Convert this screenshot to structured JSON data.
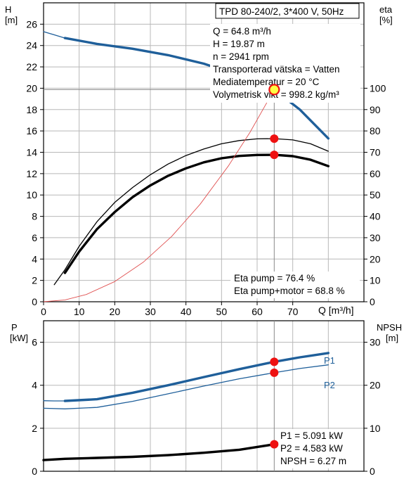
{
  "colors": {
    "blue": "#1f5f9a",
    "red_line": "#e05050",
    "marker": "#ee1111",
    "marker_highlight": "#ffff44",
    "grid": "#b8b8b8",
    "black": "#000000"
  },
  "header": {
    "title": "TPD 80-240/2, 3*400 V, 50Hz",
    "info": [
      "Q = 64.8 m³/h",
      "H = 19.87 m",
      "n = 2941 rpm",
      "Transporterad vätska = Vatten",
      "Mediatemperatur = 20 °C",
      "Volymetrisk vikt = 998.2 kg/m³"
    ]
  },
  "chart_data": [
    {
      "type": "line",
      "panel": "top",
      "left_axis": {
        "label": "H",
        "unit": "[m]",
        "range": [
          0,
          28
        ],
        "ticks": [
          "0",
          "2",
          "4",
          "6",
          "8",
          "10",
          "12",
          "14",
          "16",
          "18",
          "20",
          "22",
          "24",
          "26"
        ]
      },
      "right_axis": {
        "label": "eta",
        "unit": "[%]",
        "range": [
          0,
          140
        ],
        "ticks": [
          "0",
          "10",
          "20",
          "30",
          "40",
          "50",
          "60",
          "70",
          "80",
          "90",
          "100"
        ]
      },
      "x_axis": {
        "label": "Q [m³/h]",
        "range": [
          0,
          90
        ],
        "ticks": [
          "0",
          "10",
          "20",
          "30",
          "40",
          "50",
          "60",
          "70"
        ]
      },
      "grid": true,
      "series": [
        {
          "key": "H",
          "axis": "left",
          "color": "blue",
          "style": "thick",
          "x": [
            6,
            15,
            25,
            35,
            45,
            55,
            64.8,
            72,
            80
          ],
          "y": [
            24.7,
            24.15,
            23.7,
            23.1,
            22.3,
            21.2,
            19.87,
            18.0,
            15.3
          ]
        },
        {
          "key": "H_extension",
          "axis": "left",
          "color": "blue",
          "style": "thin",
          "x": [
            0,
            3,
            6
          ],
          "y": [
            25.3,
            25.0,
            24.7
          ]
        },
        {
          "key": "eta_pump",
          "axis": "right",
          "color": "black",
          "style": "thin",
          "x": [
            3,
            6,
            10,
            15,
            20,
            25,
            30,
            35,
            40,
            45,
            50,
            55,
            60,
            64.8,
            70,
            75,
            80
          ],
          "y": [
            8,
            15,
            26,
            37.5,
            46.5,
            53.5,
            59.5,
            64.5,
            68.5,
            71.5,
            74,
            75.5,
            76.3,
            76.4,
            75.8,
            74,
            70.5
          ]
        },
        {
          "key": "eta_pump_motor",
          "axis": "right",
          "color": "black",
          "style": "thick",
          "x": [
            6,
            10,
            15,
            20,
            25,
            30,
            35,
            40,
            45,
            50,
            55,
            60,
            64.8,
            70,
            75,
            80
          ],
          "y": [
            13.5,
            23.5,
            34,
            42,
            49,
            54.5,
            59,
            62.5,
            65.3,
            67.2,
            68.3,
            68.75,
            68.8,
            68.2,
            66.5,
            63.5
          ]
        },
        {
          "key": "system_curve",
          "axis": "left",
          "color": "red_line",
          "style": "thin",
          "x": [
            0,
            6,
            12,
            20,
            28,
            36,
            44,
            52,
            58,
            64.8
          ],
          "y": [
            0,
            0.17,
            0.68,
            1.89,
            3.7,
            6.12,
            9.14,
            12.76,
            15.88,
            19.87
          ]
        }
      ],
      "markers": [
        {
          "x": 64.8,
          "y": 19.87,
          "axis": "left",
          "highlight": true
        },
        {
          "x": 64.8,
          "y": 76.4,
          "axis": "right"
        },
        {
          "x": 64.8,
          "y": 68.8,
          "axis": "right"
        }
      ],
      "annotations": [
        "Eta pump = 76.4 %",
        "Eta pump+motor = 68.8 %"
      ]
    },
    {
      "type": "line",
      "panel": "bottom",
      "left_axis": {
        "label": "P",
        "unit": "[kW]",
        "range": [
          0,
          7
        ],
        "ticks": [
          "0",
          "2",
          "4",
          "6"
        ]
      },
      "right_axis": {
        "label": "NPSH",
        "unit": "[m]",
        "range": [
          0,
          35
        ],
        "ticks": [
          "0",
          "10",
          "20",
          "30"
        ]
      },
      "x_axis": {
        "range": [
          0,
          90
        ]
      },
      "grid": true,
      "series": [
        {
          "key": "P1",
          "name": "P1",
          "axis": "left",
          "color": "blue",
          "style": "thick",
          "x": [
            6,
            15,
            25,
            35,
            45,
            55,
            64.8,
            72,
            80
          ],
          "y": [
            3.27,
            3.35,
            3.65,
            4.0,
            4.38,
            4.75,
            5.091,
            5.3,
            5.5
          ]
        },
        {
          "key": "P1_extension",
          "axis": "left",
          "color": "blue",
          "style": "thin",
          "x": [
            0,
            3,
            6
          ],
          "y": [
            3.28,
            3.27,
            3.27
          ]
        },
        {
          "key": "P2",
          "name": "P2",
          "axis": "left",
          "color": "blue",
          "style": "thin",
          "x": [
            0,
            6,
            15,
            25,
            35,
            45,
            55,
            64.8,
            72,
            80
          ],
          "y": [
            2.93,
            2.9,
            2.97,
            3.25,
            3.6,
            3.96,
            4.3,
            4.583,
            4.78,
            4.95
          ]
        },
        {
          "key": "NPSH",
          "axis": "right",
          "color": "black",
          "style": "thick",
          "x": [
            0,
            6,
            15,
            25,
            35,
            45,
            55,
            64.8,
            69
          ],
          "y": [
            2.6,
            2.9,
            3.1,
            3.35,
            3.75,
            4.3,
            5.0,
            6.27,
            7.0
          ]
        }
      ],
      "markers": [
        {
          "x": 64.8,
          "y": 5.091,
          "axis": "left"
        },
        {
          "x": 64.8,
          "y": 4.583,
          "axis": "left"
        },
        {
          "x": 64.8,
          "y": 6.27,
          "axis": "right"
        }
      ],
      "annotations": [
        "P1 = 5.091 kW",
        "P2 = 4.583 kW",
        "NPSH = 6.27 m"
      ]
    }
  ]
}
